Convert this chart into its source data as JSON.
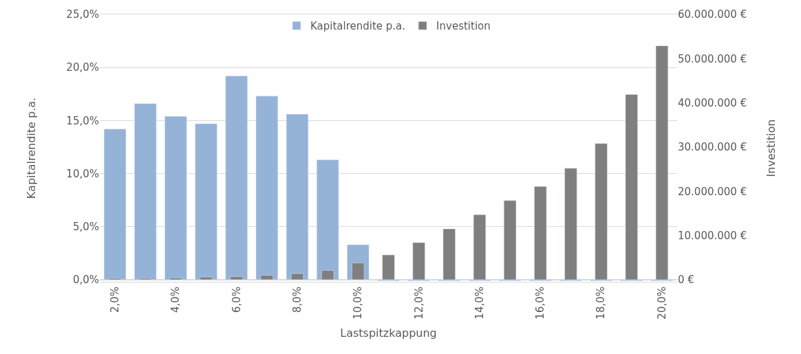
{
  "chart_data": {
    "type": "bar",
    "xlabel": "Lastspitzkappung",
    "ylabel": "Kapitalrendite p.a.",
    "y2label": "Investition",
    "categories": [
      "2,0%",
      null,
      "4,0%",
      null,
      "6,0%",
      null,
      "8,0%",
      null,
      "10,0%",
      null,
      "12,0%",
      null,
      "14,0%",
      null,
      "16,0%",
      null,
      "18,0%",
      null,
      "20,0%"
    ],
    "series": [
      {
        "name": "Kapitalrendite p.a.",
        "color": "#95b3d7",
        "values": [
          14.2,
          16.6,
          15.4,
          14.7,
          19.2,
          17.3,
          15.6,
          11.3,
          3.3,
          -0.1,
          -0.1,
          -0.1,
          -0.1,
          -0.1,
          -0.1,
          -0.1,
          -0.1,
          -0.1,
          -0.1
        ]
      },
      {
        "name": "Investition",
        "color": "#7f7f7f",
        "axis": "y2",
        "values": [
          300000,
          300000,
          400000,
          600000,
          700000,
          1000000,
          1400000,
          2100000,
          3800000,
          5600000,
          8400000,
          11500000,
          14700000,
          17900000,
          21100000,
          25200000,
          30800000,
          41900000,
          52900000
        ]
      }
    ],
    "ylim": [
      -0.2,
      25
    ],
    "yticks": [
      {
        "value": 0,
        "label": "0,0%"
      },
      {
        "value": 5,
        "label": "5,0%"
      },
      {
        "value": 10,
        "label": "10,0%"
      },
      {
        "value": 15,
        "label": "15,0%"
      },
      {
        "value": 20,
        "label": "20,0%"
      },
      {
        "value": 25,
        "label": "25,0%"
      }
    ],
    "y2lim": [
      -480000,
      60000000
    ],
    "y2ticks": [
      {
        "value": 0,
        "label": "0 €"
      },
      {
        "value": 10000000,
        "label": "10.000.000 €"
      },
      {
        "value": 20000000,
        "label": "20.000.000 €"
      },
      {
        "value": 30000000,
        "label": "30.000.000 €"
      },
      {
        "value": 40000000,
        "label": "40.000.000 €"
      },
      {
        "value": 50000000,
        "label": "50.000.000 €"
      },
      {
        "value": 60000000,
        "label": "60.000.000 €"
      }
    ],
    "grid": "y",
    "legend": "top"
  }
}
